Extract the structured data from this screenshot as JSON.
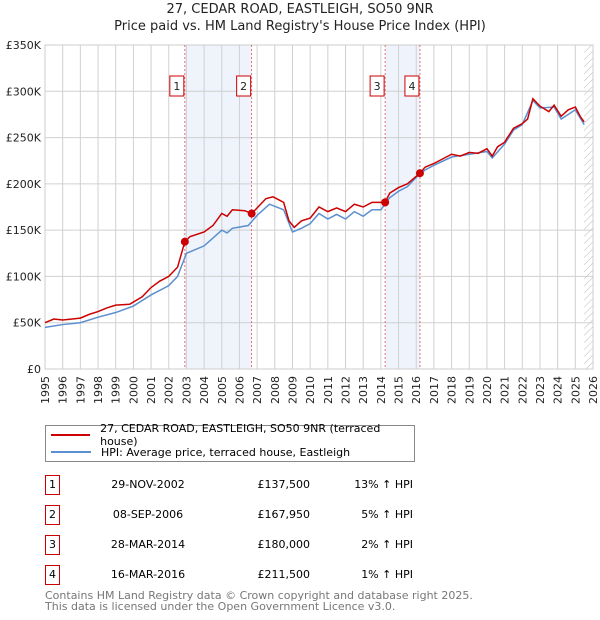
{
  "title_line1": "27, CEDAR ROAD, EASTLEIGH, SO50 9NR",
  "title_line2": "Price paid vs. HM Land Registry's House Price Index (HPI)",
  "chart_data": {
    "type": "line",
    "title": "27, CEDAR ROAD, EASTLEIGH, SO50 9NR — Price paid vs. HM Land Registry's House Price Index (HPI)",
    "xlim": [
      1995,
      2026
    ],
    "ylim": [
      0,
      350000
    ],
    "x_ticks": [
      "1995",
      "1996",
      "1997",
      "1998",
      "1999",
      "2000",
      "2001",
      "2002",
      "2003",
      "2004",
      "2005",
      "2006",
      "2007",
      "2008",
      "2009",
      "2010",
      "2011",
      "2012",
      "2013",
      "2014",
      "2015",
      "2016",
      "2017",
      "2018",
      "2019",
      "2020",
      "2021",
      "2022",
      "2023",
      "2024",
      "2025",
      "2026"
    ],
    "y_ticks": [
      {
        "v": 0,
        "label": "£0"
      },
      {
        "v": 50000,
        "label": "£50K"
      },
      {
        "v": 100000,
        "label": "£100K"
      },
      {
        "v": 150000,
        "label": "£150K"
      },
      {
        "v": 200000,
        "label": "£200K"
      },
      {
        "v": 250000,
        "label": "£250K"
      },
      {
        "v": 300000,
        "label": "£300K"
      },
      {
        "v": 350000,
        "label": "£350K"
      }
    ],
    "grid": true,
    "shaded_ranges": [
      [
        2002.91,
        2006.69
      ],
      [
        2014.24,
        2016.21
      ]
    ],
    "forecast_hatch_from": 2025.5,
    "series": [
      {
        "name": "27, CEDAR ROAD, EASTLEIGH, SO50 9NR (terraced house)",
        "color": "#cc0000",
        "x": [
          1995,
          1995.5,
          1996,
          1997,
          1997.5,
          1998,
          1998.5,
          1999,
          1999.8,
          2000.5,
          2001,
          2001.5,
          2002,
          2002.5,
          2002.91,
          2003.2,
          2004,
          2004.5,
          2005,
          2005.3,
          2005.6,
          2006.3,
          2006.69,
          2006.9,
          2007.5,
          2007.9,
          2008.5,
          2008.8,
          2009.1,
          2009.5,
          2010,
          2010.5,
          2011,
          2011.5,
          2012,
          2012.5,
          2013,
          2013.5,
          2014.24,
          2014.5,
          2015,
          2015.5,
          2016.21,
          2016.5,
          2017,
          2018,
          2018.5,
          2019,
          2019.5,
          2020,
          2020.3,
          2020.6,
          2021,
          2021.5,
          2022,
          2022.3,
          2022.6,
          2023,
          2023.5,
          2023.8,
          2024.2,
          2024.6,
          2025,
          2025.3,
          2025.5
        ],
        "y": [
          50,
          54,
          53,
          55,
          59,
          62,
          66,
          69,
          70,
          78,
          88,
          95,
          100,
          110,
          137.5,
          143,
          148,
          155,
          168,
          165,
          172,
          171,
          168,
          172,
          184,
          186,
          180,
          160,
          153,
          160,
          163,
          175,
          170,
          174,
          170,
          178,
          175,
          180,
          180,
          190,
          196,
          200,
          211.5,
          218,
          222,
          232,
          230,
          234,
          233,
          238,
          230,
          240,
          245,
          260,
          265,
          270,
          292,
          284,
          278,
          285,
          273,
          280,
          283,
          272,
          267
        ]
      },
      {
        "name": "HPI: Average price, terraced house, Eastleigh",
        "color": "#5b8fd0",
        "x": [
          1995,
          1996,
          1997,
          1998,
          1999,
          2000,
          2001,
          2002,
          2002.5,
          2003,
          2004,
          2005,
          2005.3,
          2005.6,
          2006.5,
          2007,
          2007.7,
          2008.5,
          2009,
          2009.5,
          2010,
          2010.5,
          2011,
          2011.5,
          2012,
          2012.5,
          2013,
          2013.5,
          2014,
          2014.5,
          2015,
          2015.5,
          2016,
          2016.5,
          2017,
          2018,
          2019,
          2020,
          2020.3,
          2021,
          2021.5,
          2022,
          2022.6,
          2023,
          2023.8,
          2024.2,
          2025,
          2025.5
        ],
        "y": [
          45,
          48,
          50,
          56,
          61,
          68,
          80,
          90,
          100,
          125,
          133,
          150,
          147,
          152,
          155,
          166,
          178,
          172,
          148,
          152,
          157,
          168,
          162,
          167,
          162,
          170,
          165,
          172,
          172,
          185,
          192,
          197,
          207,
          215,
          220,
          229,
          232,
          235,
          228,
          243,
          258,
          264,
          290,
          282,
          283,
          270,
          280,
          264
        ]
      }
    ],
    "sales": [
      {
        "label": "1",
        "x": 2002.91,
        "y": 137.5
      },
      {
        "label": "2",
        "x": 2006.69,
        "y": 167.95
      },
      {
        "label": "3",
        "x": 2014.24,
        "y": 180
      },
      {
        "label": "4",
        "x": 2016.21,
        "y": 211.5
      }
    ],
    "y_units": "thousands GBP"
  },
  "legend": [
    {
      "label": "27, CEDAR ROAD, EASTLEIGH, SO50 9NR (terraced house)",
      "color": "#cc0000"
    },
    {
      "label": "HPI: Average price, terraced house, Eastleigh",
      "color": "#5b8fd0"
    }
  ],
  "transactions": [
    {
      "num": "1",
      "date": "29-NOV-2002",
      "price": "£137,500",
      "hpi": "13% ↑ HPI"
    },
    {
      "num": "2",
      "date": "08-SEP-2006",
      "price": "£167,950",
      "hpi": "5% ↑ HPI"
    },
    {
      "num": "3",
      "date": "28-MAR-2014",
      "price": "£180,000",
      "hpi": "2% ↑ HPI"
    },
    {
      "num": "4",
      "date": "16-MAR-2016",
      "price": "£211,500",
      "hpi": "1% ↑ HPI"
    }
  ],
  "footer_line1": "Contains HM Land Registry data © Crown copyright and database right 2025.",
  "footer_line2": "This data is licensed under the Open Government Licence v3.0."
}
